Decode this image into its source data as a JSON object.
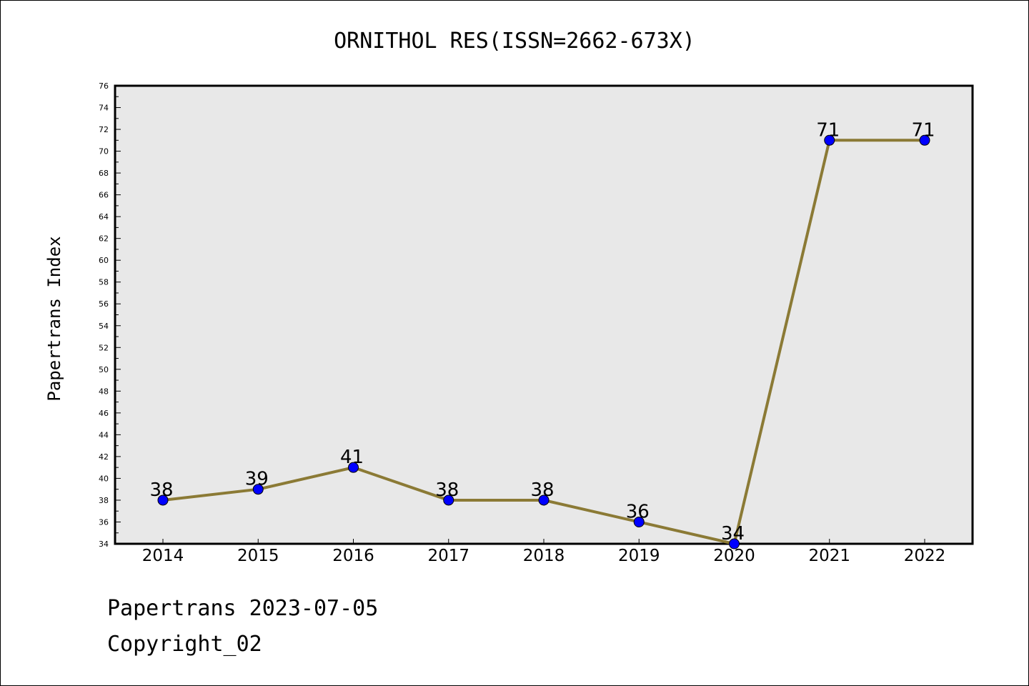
{
  "chart_data": {
    "type": "line",
    "title": "ORNITHOL RES(ISSN=2662-673X)",
    "xlabel": "",
    "ylabel": "Papertrans Index",
    "categories": [
      "2014",
      "2015",
      "2016",
      "2017",
      "2018",
      "2019",
      "2020",
      "2021",
      "2022"
    ],
    "series": [
      {
        "values": [
          38,
          39,
          41,
          38,
          38,
          36,
          34,
          71,
          71
        ]
      }
    ],
    "ylim": [
      34,
      76
    ],
    "yticks": [
      34,
      36,
      38,
      40,
      42,
      44,
      46,
      48,
      50,
      52,
      54,
      56,
      58,
      60,
      62,
      64,
      66,
      68,
      70,
      72,
      74,
      76
    ],
    "grid": false,
    "legend": "none",
    "data_labels": true,
    "colors": {
      "line": "#8b7a35",
      "marker_fill": "#0000ff",
      "marker_edge": "#000000",
      "plot_background": "#e8e8e8"
    }
  },
  "footer": {
    "date_text": "Papertrans 2023-07-05",
    "copyright_text": "Copyright_02"
  }
}
